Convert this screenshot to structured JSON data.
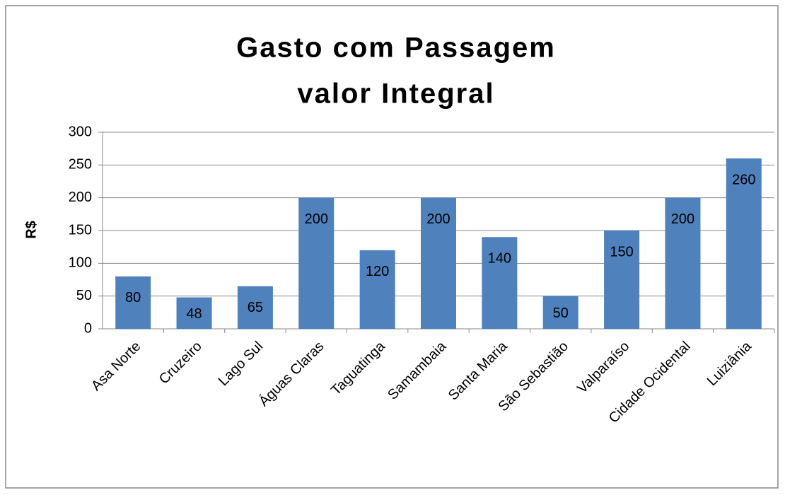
{
  "chart_data": {
    "type": "bar",
    "title": [
      "Gasto com Passagem",
      "valor Integral"
    ],
    "y_label": "R$",
    "categories": [
      "Asa Norte",
      "Cruzeiro",
      "Lago Sul",
      "Águas Claras",
      "Taguatinga",
      "Samambaia",
      "Santa Maria",
      "São Sebastião",
      "Valparaíso",
      "Cidade Ocidental",
      "Luiziânia"
    ],
    "values": [
      80,
      48,
      65,
      200,
      120,
      200,
      140,
      50,
      150,
      200,
      260
    ],
    "color": "#4f81bd",
    "ylim": [
      0,
      300
    ],
    "yticks": [
      0,
      50,
      100,
      150,
      200,
      250,
      300
    ],
    "grid": true
  }
}
